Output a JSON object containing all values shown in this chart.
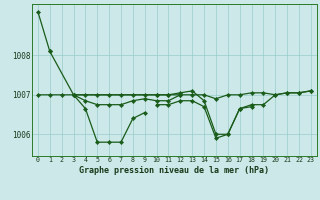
{
  "title": "Graphe pression niveau de la mer (hPa)",
  "bg_color": "#cce8e8",
  "grid_color": "#99cccc",
  "line_color": "#1a5c1a",
  "xlim": [
    -0.5,
    23.5
  ],
  "ylim": [
    1005.45,
    1009.3
  ],
  "yticks": [
    1006,
    1007,
    1008
  ],
  "x_labels": [
    "0",
    "1",
    "2",
    "3",
    "4",
    "5",
    "6",
    "7",
    "8",
    "9",
    "10",
    "11",
    "12",
    "13",
    "14",
    "15",
    "16",
    "17",
    "18",
    "19",
    "20",
    "21",
    "22",
    "23"
  ],
  "line1": [
    1009.1,
    1008.1,
    null,
    null,
    null,
    null,
    null,
    null,
    null,
    null,
    null,
    null,
    null,
    null,
    null,
    null,
    null,
    null,
    null,
    null,
    null,
    null,
    null,
    null
  ],
  "line2": [
    null,
    1008.1,
    null,
    1007.0,
    1006.65,
    1005.8,
    1005.8,
    1005.8,
    1006.4,
    1006.55,
    null,
    null,
    null,
    null,
    null,
    null,
    null,
    null,
    null,
    null,
    null,
    null,
    null,
    null
  ],
  "line3": [
    null,
    null,
    null,
    1007.0,
    1006.85,
    1006.75,
    1006.75,
    1006.75,
    1006.85,
    1006.9,
    1006.85,
    1006.85,
    1007.0,
    null,
    null,
    null,
    null,
    null,
    null,
    null,
    null,
    null,
    null,
    null
  ],
  "line4": [
    null,
    null,
    null,
    1007.0,
    null,
    null,
    null,
    null,
    null,
    null,
    1007.0,
    1007.0,
    1007.05,
    1007.1,
    1006.85,
    1006.0,
    1006.0,
    1006.65,
    1006.75,
    1006.75,
    1007.0,
    1007.05,
    1007.05,
    1007.1
  ],
  "line5": [
    1007.0,
    1007.0,
    1007.0,
    1007.0,
    1007.0,
    1007.0,
    1007.0,
    1007.0,
    1007.0,
    1007.0,
    1007.0,
    1007.0,
    1007.0,
    1007.0,
    1007.0,
    1006.9,
    1007.0,
    1007.0,
    1007.05,
    1007.05,
    1007.0,
    1007.05,
    1007.05,
    1007.1
  ],
  "line6": [
    null,
    null,
    null,
    null,
    null,
    null,
    null,
    null,
    null,
    null,
    1006.75,
    1006.75,
    1006.85,
    1006.85,
    1006.7,
    1005.9,
    1006.0,
    1006.65,
    1006.7,
    null,
    null,
    null,
    null,
    null
  ]
}
